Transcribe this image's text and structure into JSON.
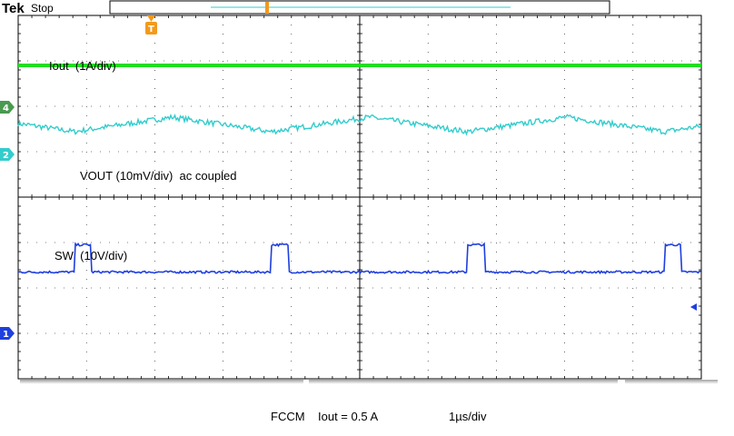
{
  "header": {
    "brand": "Tek",
    "status": "Stop"
  },
  "markers": {
    "trigger": "T",
    "ch4": "4",
    "ch2": "2",
    "ch1": "1"
  },
  "colors": {
    "grid": "#000000",
    "ch4": "#22dd22",
    "ch2": "#33cccc",
    "ch1": "#1f3fdf",
    "trigger": "#f29a1c",
    "marker_ch4": "#4a9a50"
  },
  "chart_data": {
    "type": "line",
    "title": "",
    "xlabel": "",
    "ylabel": "",
    "grid": true,
    "divisions": {
      "x": 10,
      "y": 8
    },
    "timebase": "1µs/div",
    "series": [
      {
        "name": "Iout  (1A/div)",
        "channel": 4,
        "shape": "flat",
        "level_div": 2.9
      },
      {
        "name": "VOUT (10mV/div)  ac coupled",
        "channel": 2,
        "shape": "ripple",
        "level_div": 1.6,
        "period_div": 2.88,
        "amplitude_div": 0.16
      },
      {
        "name": "SW  (10V/div)",
        "channel": 1,
        "shape": "pulse",
        "low_div": -1.65,
        "high_div": -1.05,
        "period_div": 2.88,
        "pulse_width_div": 0.25,
        "first_edge_div": 0.82
      }
    ],
    "captions": {
      "mode": "FCCM",
      "iout": "Iout = 0.5 A",
      "timebase": "1µs/div"
    }
  }
}
